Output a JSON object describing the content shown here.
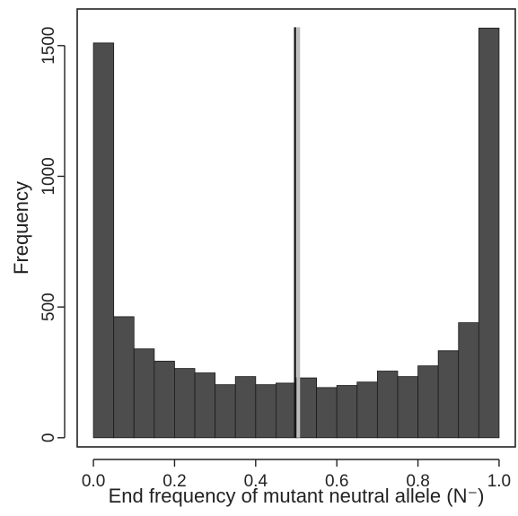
{
  "chart_data": {
    "type": "bar",
    "xlabel": "End frequency of mutant neutral allele (N⁻)",
    "ylabel": "Frequency",
    "xlim": [
      -0.04,
      1.04
    ],
    "ylim": [
      -35,
      1640
    ],
    "bin_width": 0.05,
    "bins": [
      {
        "x0": 0.0,
        "x1": 0.05,
        "value": 1510
      },
      {
        "x0": 0.05,
        "x1": 0.1,
        "value": 463
      },
      {
        "x0": 0.1,
        "x1": 0.15,
        "value": 340
      },
      {
        "x0": 0.15,
        "x1": 0.2,
        "value": 293
      },
      {
        "x0": 0.2,
        "x1": 0.25,
        "value": 265
      },
      {
        "x0": 0.25,
        "x1": 0.3,
        "value": 248
      },
      {
        "x0": 0.3,
        "x1": 0.35,
        "value": 203
      },
      {
        "x0": 0.35,
        "x1": 0.4,
        "value": 234
      },
      {
        "x0": 0.4,
        "x1": 0.45,
        "value": 203
      },
      {
        "x0": 0.45,
        "x1": 0.5,
        "value": 209
      },
      {
        "x0": 0.5,
        "x1": 0.55,
        "value": 229
      },
      {
        "x0": 0.55,
        "x1": 0.6,
        "value": 192
      },
      {
        "x0": 0.6,
        "x1": 0.65,
        "value": 200
      },
      {
        "x0": 0.65,
        "x1": 0.7,
        "value": 213
      },
      {
        "x0": 0.7,
        "x1": 0.75,
        "value": 255
      },
      {
        "x0": 0.75,
        "x1": 0.8,
        "value": 234
      },
      {
        "x0": 0.8,
        "x1": 0.85,
        "value": 275
      },
      {
        "x0": 0.85,
        "x1": 0.9,
        "value": 333
      },
      {
        "x0": 0.9,
        "x1": 0.95,
        "value": 440
      },
      {
        "x0": 0.95,
        "x1": 1.0,
        "value": 1567
      }
    ],
    "x_ticks": [
      {
        "value": 0.0,
        "label": "0.0"
      },
      {
        "value": 0.2,
        "label": "0.2"
      },
      {
        "value": 0.4,
        "label": "0.4"
      },
      {
        "value": 0.6,
        "label": "0.6"
      },
      {
        "value": 0.8,
        "label": "0.8"
      },
      {
        "value": 1.0,
        "label": "1.0"
      }
    ],
    "y_ticks": [
      {
        "value": 0,
        "label": "0"
      },
      {
        "value": 500,
        "label": "500"
      },
      {
        "value": 1000,
        "label": "1000"
      },
      {
        "value": 1500,
        "label": "1500"
      }
    ],
    "reference_lines": [
      {
        "x": 0.505,
        "color": "#bdbdbd",
        "top_value": 1570
      },
      {
        "x": 0.497,
        "color": "#1a1a1a",
        "top_value": 1570
      }
    ],
    "bar_color": "#4d4d4d",
    "bar_edge_color": "#1a1a1a",
    "grid": false
  }
}
